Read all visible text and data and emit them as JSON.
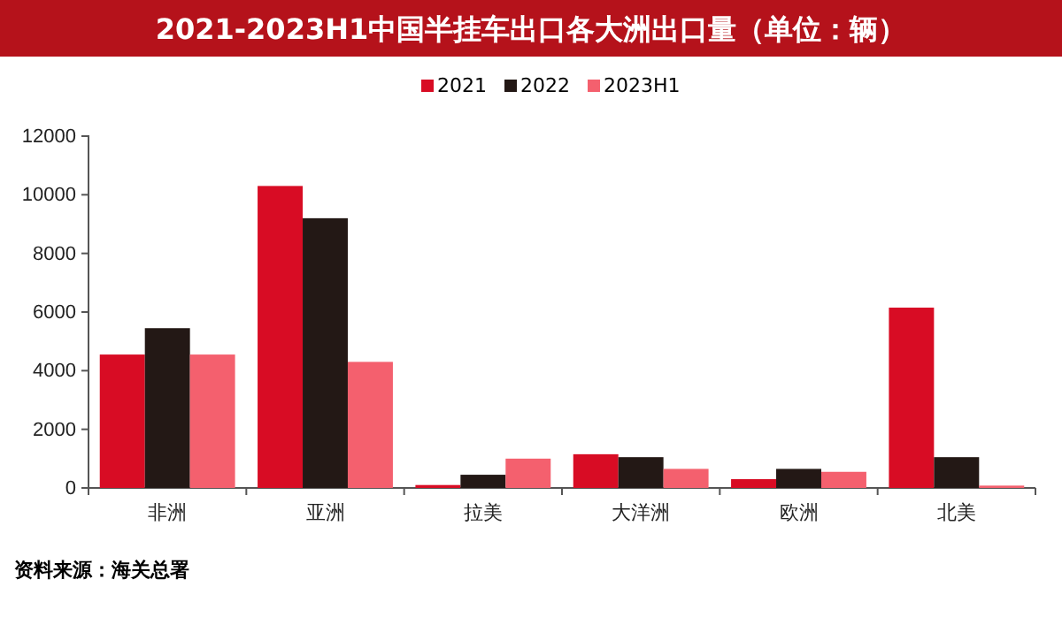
{
  "chart_data": {
    "type": "bar",
    "title": "2021-2023H1中国半挂车出口各大洲出口量（单位：辆）",
    "categories": [
      "非洲",
      "亚洲",
      "拉美",
      "大洋洲",
      "欧洲",
      "北美"
    ],
    "series": [
      {
        "name": "2021",
        "color": "#d80c24",
        "values": [
          4550,
          10300,
          100,
          1150,
          300,
          6150
        ]
      },
      {
        "name": "2022",
        "color": "#231815",
        "values": [
          5450,
          9200,
          450,
          1050,
          650,
          1050
        ]
      },
      {
        "name": "2023H1",
        "color": "#f4606e",
        "values": [
          4550,
          4300,
          1000,
          650,
          550,
          80
        ]
      }
    ],
    "ylim": [
      0,
      12000
    ],
    "yticks": [
      0,
      2000,
      4000,
      6000,
      8000,
      10000,
      12000
    ],
    "grid": false,
    "legend": "top",
    "annotations": [
      "资料来源：海关总署"
    ]
  }
}
